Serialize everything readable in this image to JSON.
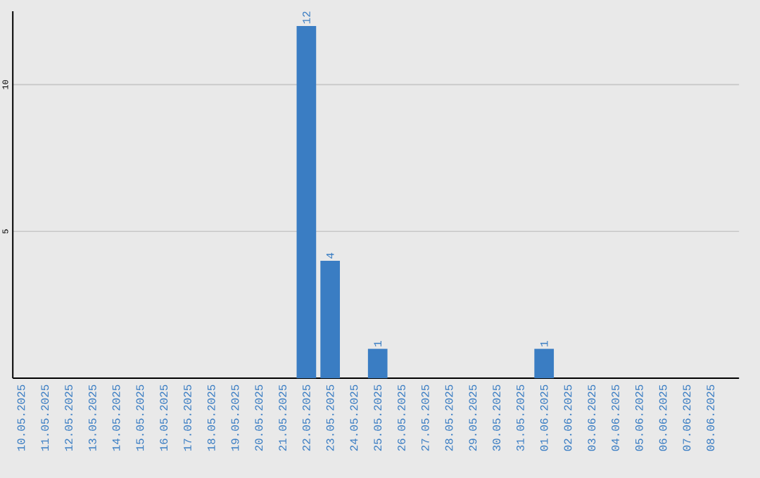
{
  "chart_data": {
    "type": "bar",
    "categories": [
      "10.05.2025",
      "11.05.2025",
      "12.05.2025",
      "13.05.2025",
      "14.05.2025",
      "15.05.2025",
      "16.05.2025",
      "17.05.2025",
      "18.05.2025",
      "19.05.2025",
      "20.05.2025",
      "21.05.2025",
      "22.05.2025",
      "23.05.2025",
      "24.05.2025",
      "25.05.2025",
      "26.05.2025",
      "27.05.2025",
      "28.05.2025",
      "29.05.2025",
      "30.05.2025",
      "31.05.2025",
      "01.06.2025",
      "02.06.2025",
      "03.06.2025",
      "04.06.2025",
      "05.06.2025",
      "06.06.2025",
      "07.06.2025",
      "08.06.2025"
    ],
    "values": [
      0,
      0,
      0,
      0,
      0,
      0,
      0,
      0,
      0,
      0,
      0,
      0,
      12,
      4,
      0,
      1,
      0,
      0,
      0,
      0,
      0,
      0,
      1,
      0,
      0,
      0,
      0,
      0,
      0,
      0
    ],
    "value_labels": [
      null,
      null,
      null,
      null,
      null,
      null,
      null,
      null,
      null,
      null,
      null,
      null,
      "12",
      "4",
      null,
      "1",
      null,
      null,
      null,
      null,
      null,
      null,
      "1",
      null,
      null,
      null,
      null,
      null,
      null,
      null
    ],
    "color": "#3a7dc3",
    "ylim": [
      0,
      12.5
    ],
    "yticks": [
      5,
      10
    ],
    "grid": "y"
  }
}
